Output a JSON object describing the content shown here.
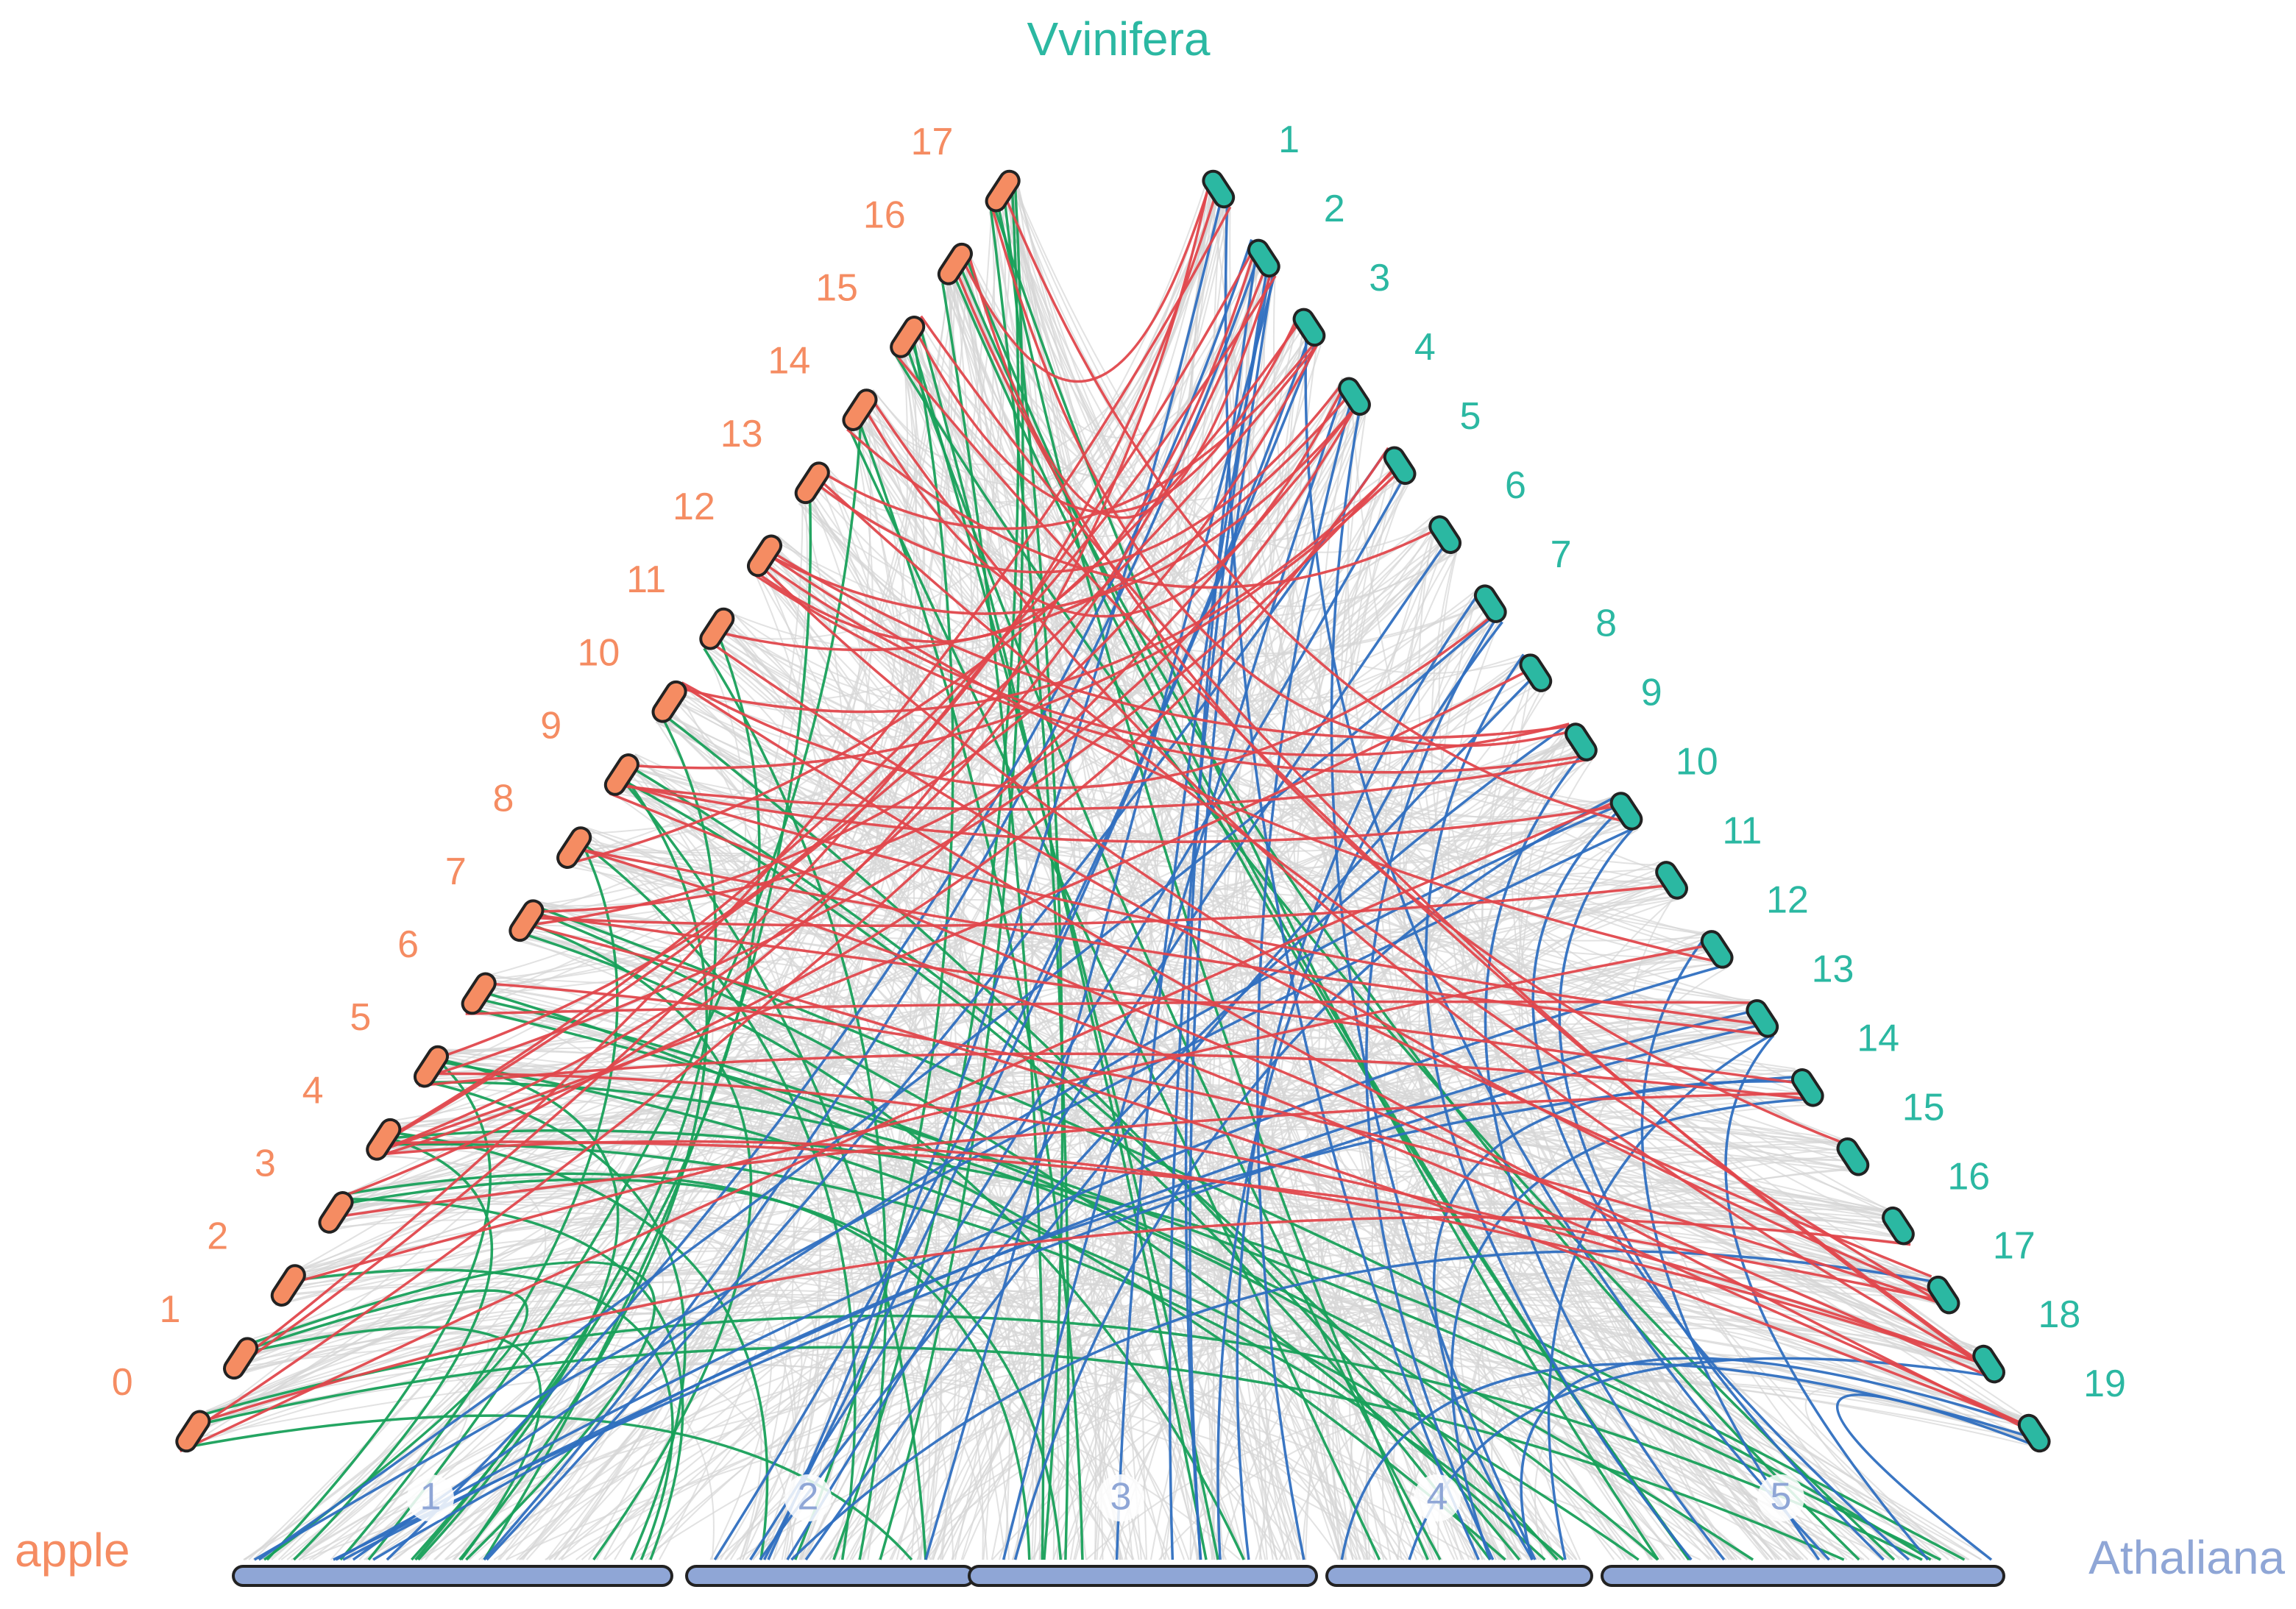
{
  "genomes": [
    {
      "name": "Vvinifera",
      "chromosomes": [
        "1",
        "2",
        "3",
        "4",
        "5",
        "6",
        "7",
        "8",
        "9",
        "10",
        "11",
        "12",
        "13",
        "14",
        "15",
        "16",
        "17",
        "18",
        "19"
      ]
    },
    {
      "name": "apple",
      "chromosomes": [
        "0",
        "1",
        "2",
        "3",
        "4",
        "5",
        "6",
        "7",
        "8",
        "9",
        "10",
        "11",
        "12",
        "13",
        "14",
        "15",
        "16",
        "17"
      ]
    },
    {
      "name": "Athaliana",
      "chromosomes": [
        "1",
        "2",
        "3",
        "4",
        "5"
      ]
    }
  ]
}
